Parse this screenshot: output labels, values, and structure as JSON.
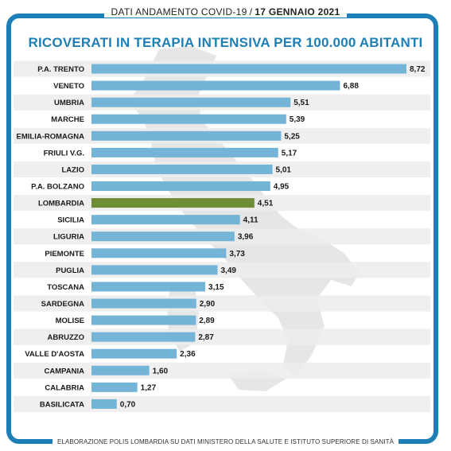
{
  "header": {
    "subtitle": "DATI ANDAMENTO COVID-19",
    "separator": "/",
    "date": "17 GENNAIO 2021"
  },
  "footer": {
    "source": "ELABORAZIONE POLIS LOMBARDIA SU DATI MINISTERO DELLA SALUTE E ISTITUTO SUPERIORE DI SANITÀ"
  },
  "colors": {
    "frame": "#1e7fb6",
    "title": "#1e7fb6",
    "bar": "#74b4d6",
    "highlight_bar": "#6d8d37",
    "row_band": "#ececec",
    "map_silhouette": "#e6e6e6"
  },
  "chart_data": {
    "type": "bar",
    "orientation": "horizontal",
    "title": "RICOVERATI IN TERAPIA INTENSIVA PER 100.000 ABITANTI",
    "xlabel": "",
    "ylabel": "",
    "grid": false,
    "legend": "none",
    "xlim": [
      0,
      8.72
    ],
    "highlight": "LOMBARDIA",
    "categories": [
      "P.A. TRENTO",
      "VENETO",
      "UMBRIA",
      "MARCHE",
      "EMILIA-ROMAGNA",
      "FRIULI V.G.",
      "LAZIO",
      "P.A. BOLZANO",
      "LOMBARDIA",
      "SICILIA",
      "LIGURIA",
      "PIEMONTE",
      "PUGLIA",
      "TOSCANA",
      "SARDEGNA",
      "MOLISE",
      "ABRUZZO",
      "VALLE D'AOSTA",
      "CAMPANIA",
      "CALABRIA",
      "BASILICATA"
    ],
    "values": [
      8.72,
      6.88,
      5.51,
      5.39,
      5.25,
      5.17,
      5.01,
      4.95,
      4.51,
      4.11,
      3.96,
      3.73,
      3.49,
      3.15,
      2.9,
      2.89,
      2.87,
      2.36,
      1.6,
      1.27,
      0.7
    ],
    "value_labels": [
      "8,72",
      "6,88",
      "5,51",
      "5,39",
      "5,25",
      "5,17",
      "5,01",
      "4,95",
      "4,51",
      "4,11",
      "3,96",
      "3,73",
      "3,49",
      "3,15",
      "2,90",
      "2,89",
      "2,87",
      "2,36",
      "1,60",
      "1,27",
      "0,70"
    ]
  }
}
